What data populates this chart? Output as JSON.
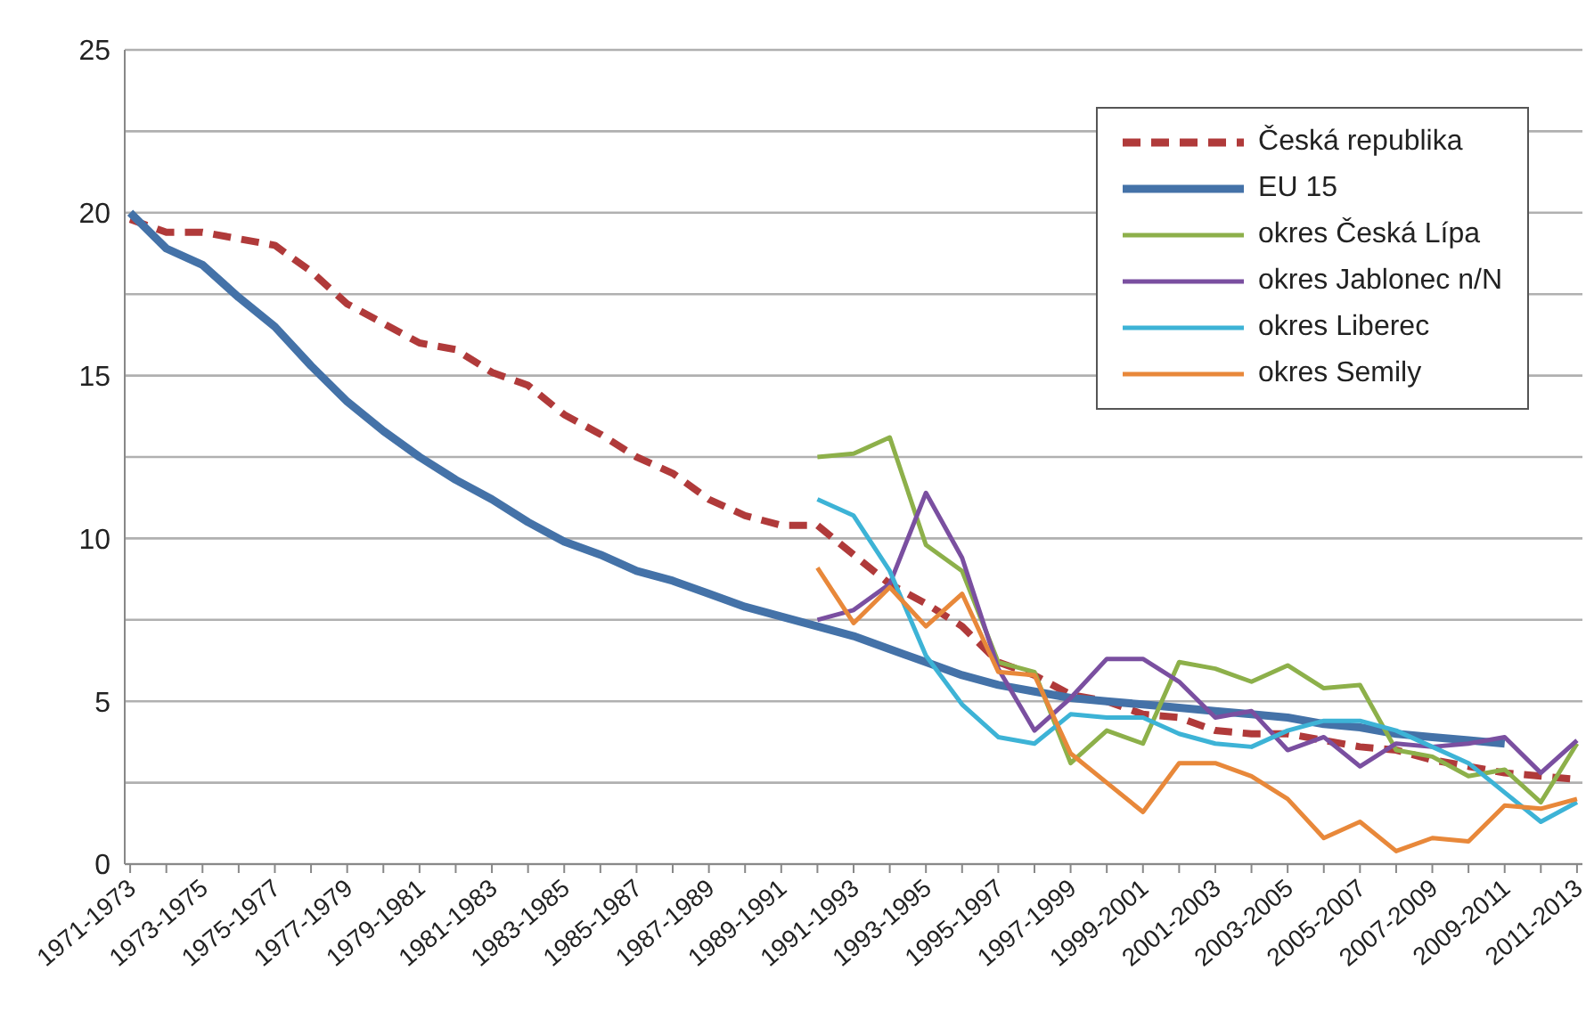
{
  "chart_data": {
    "type": "line",
    "categories": [
      "1971-1973",
      null,
      "1973-1975",
      null,
      "1975-1977",
      null,
      "1977-1979",
      null,
      "1979-1981",
      null,
      "1981-1983",
      null,
      "1983-1985",
      null,
      "1985-1987",
      null,
      "1987-1989",
      null,
      "1989-1991",
      null,
      "1991-1993",
      null,
      "1993-1995",
      null,
      "1995-1997",
      null,
      "1997-1999",
      null,
      "1999-2001",
      null,
      "2001-2003",
      null,
      "2003-2005",
      null,
      "2005-2007",
      null,
      "2007-2009",
      null,
      "2009-2011",
      null,
      "2011-2013"
    ],
    "series": [
      {
        "name": "Česká republika",
        "color": "#b03a3a",
        "line_style": "dashed",
        "values": [
          19.8,
          19.4,
          19.4,
          19.2,
          19.0,
          18.2,
          17.2,
          16.6,
          16.0,
          15.8,
          15.1,
          14.7,
          13.8,
          13.2,
          12.5,
          12.0,
          11.2,
          10.7,
          10.4,
          10.4,
          9.5,
          8.6,
          8.0,
          7.3,
          6.2,
          5.8,
          5.2,
          5.0,
          4.6,
          4.5,
          4.1,
          4.0,
          4.0,
          3.8,
          3.6,
          3.5,
          3.2,
          3.0,
          2.8,
          2.7,
          2.6
        ]
      },
      {
        "name": "EU 15",
        "color": "#4472a8",
        "values": [
          20.0,
          18.9,
          18.4,
          17.4,
          16.5,
          15.3,
          14.2,
          13.3,
          12.5,
          11.8,
          11.2,
          10.5,
          9.9,
          9.5,
          9.0,
          8.7,
          8.3,
          7.9,
          7.6,
          7.3,
          7.0,
          6.6,
          6.2,
          5.8,
          5.5,
          5.3,
          5.1,
          5.0,
          4.9,
          4.8,
          4.7,
          4.6,
          4.5,
          4.3,
          4.2,
          4.0,
          3.9,
          3.8,
          3.7,
          null,
          null
        ]
      },
      {
        "name": "okres Česká Lípa",
        "color": "#8db04a",
        "values": [
          null,
          null,
          null,
          null,
          null,
          null,
          null,
          null,
          null,
          null,
          null,
          null,
          null,
          null,
          null,
          null,
          null,
          null,
          null,
          12.5,
          12.6,
          13.1,
          9.8,
          9.0,
          6.2,
          5.9,
          3.1,
          4.1,
          3.7,
          6.2,
          6.0,
          5.6,
          6.1,
          5.4,
          5.5,
          3.5,
          3.3,
          2.7,
          2.9,
          1.9,
          3.7
        ]
      },
      {
        "name": "okres Jablonec n/N",
        "color": "#7a4fa0",
        "values": [
          null,
          null,
          null,
          null,
          null,
          null,
          null,
          null,
          null,
          null,
          null,
          null,
          null,
          null,
          null,
          null,
          null,
          null,
          null,
          7.5,
          7.8,
          8.6,
          11.4,
          9.4,
          6.0,
          4.1,
          5.1,
          6.3,
          6.3,
          5.6,
          4.5,
          4.7,
          3.5,
          3.9,
          3.0,
          3.7,
          3.6,
          3.7,
          3.9,
          2.8,
          3.8
        ]
      },
      {
        "name": "okres Liberec",
        "color": "#3db3d6",
        "values": [
          null,
          null,
          null,
          null,
          null,
          null,
          null,
          null,
          null,
          null,
          null,
          null,
          null,
          null,
          null,
          null,
          null,
          null,
          null,
          11.2,
          10.7,
          9.0,
          6.4,
          4.9,
          3.9,
          3.7,
          4.6,
          4.5,
          4.5,
          4.0,
          3.7,
          3.6,
          4.1,
          4.4,
          4.4,
          4.1,
          3.6,
          3.1,
          2.2,
          1.3,
          1.9
        ]
      },
      {
        "name": "okres Semily",
        "color": "#e8883a",
        "values": [
          null,
          null,
          null,
          null,
          null,
          null,
          null,
          null,
          null,
          null,
          null,
          null,
          null,
          null,
          null,
          null,
          null,
          null,
          null,
          9.1,
          7.4,
          8.5,
          7.3,
          8.3,
          5.9,
          5.8,
          3.4,
          2.5,
          1.6,
          3.1,
          3.1,
          2.7,
          2.0,
          0.8,
          1.3,
          0.4,
          0.8,
          0.7,
          1.8,
          1.7,
          2.0
        ]
      }
    ],
    "ylim": [
      0,
      25
    ],
    "yticks": [
      0,
      {
        "value": 2.5,
        "label": null
      },
      5,
      {
        "value": 7.5,
        "label": null
      },
      10,
      {
        "value": 12.5,
        "label": null
      },
      15,
      {
        "value": 17.5,
        "label": null
      },
      20,
      {
        "value": 22.5,
        "label": null
      },
      25
    ],
    "grid": "y",
    "legend": "top right",
    "marker": "none"
  }
}
